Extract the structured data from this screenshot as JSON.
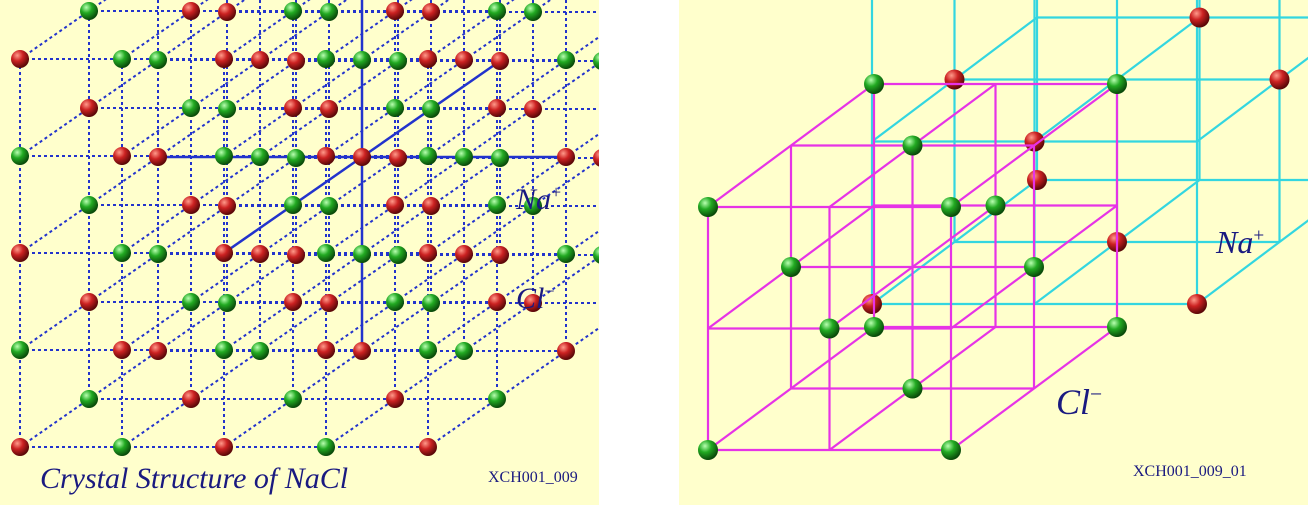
{
  "left_panel": {
    "title": "Crystal Structure of NaCl",
    "code": "XCH001_009",
    "label_na": "Na",
    "label_na_charge": "+",
    "label_cl": "Cl",
    "label_cl_charge": "−"
  },
  "right_panel": {
    "code": "XCH001_009_01",
    "label_na": "Na",
    "label_na_charge": "+",
    "label_cl": "Cl",
    "label_cl_charge": "−"
  },
  "colors": {
    "background": "#ffffcc",
    "na_ion": "#cc2222",
    "cl_ion": "#22aa22",
    "lattice_lines": "#2233cc",
    "na_sublattice": "#33d6e0",
    "cl_sublattice": "#e633e6",
    "text": "#1a1a80"
  }
}
